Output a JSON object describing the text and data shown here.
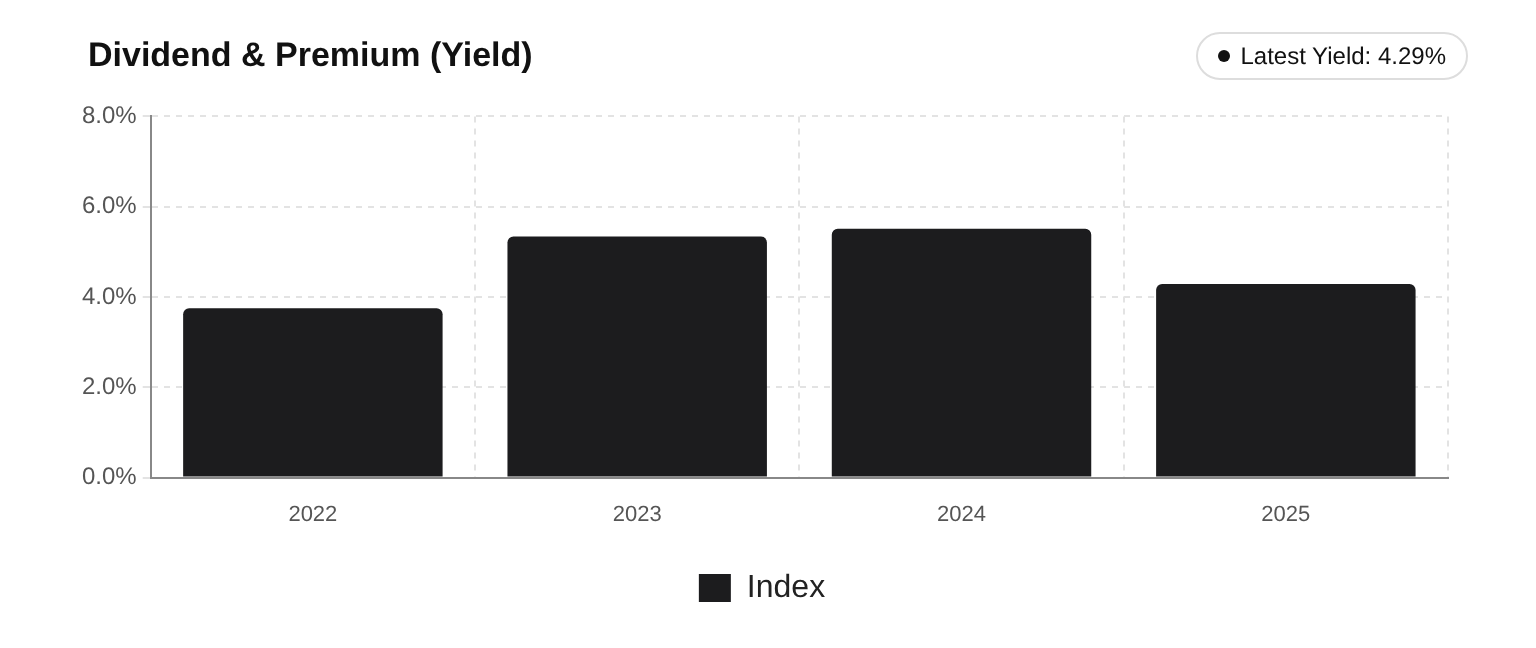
{
  "chart_data": {
    "type": "bar",
    "title": "Dividend & Premium (Yield)",
    "annotations": [
      "Latest Yield: 4.29%"
    ],
    "categories": [
      "2022",
      "2023",
      "2024",
      "2025"
    ],
    "series": [
      {
        "name": "Index",
        "color": "#1c1c1e",
        "values": [
          3.75,
          5.34,
          5.51,
          4.29
        ]
      }
    ],
    "ylim": [
      0,
      8
    ],
    "yticks": [
      {
        "value": 0,
        "label": "0.0%"
      },
      {
        "value": 2,
        "label": "2.0%"
      },
      {
        "value": 4,
        "label": "4.0%"
      },
      {
        "value": 6,
        "label": "6.0%"
      },
      {
        "value": 8,
        "label": "8.0%"
      }
    ],
    "grid": true,
    "legend": "bottom"
  }
}
